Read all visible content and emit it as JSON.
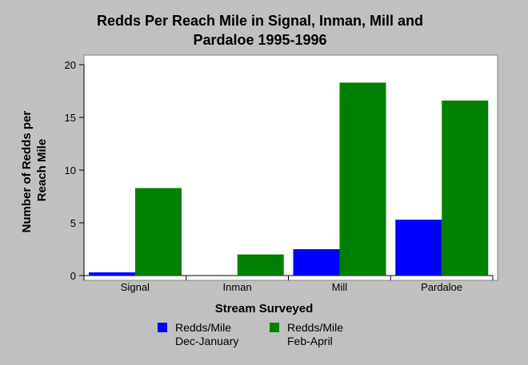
{
  "chart_data": {
    "type": "bar",
    "title": "Redds Per Reach Mile in Signal, Inman, Mill and Pardaloe 1995-1996",
    "title_lines": [
      "Redds Per Reach Mile in Signal, Inman, Mill and",
      "Pardaloe 1995-1996"
    ],
    "xlabel": "Stream Surveyed",
    "ylabel": "Number of Redds per Reach Mile",
    "ylabel_lines": [
      "Number of Redds per",
      "Reach Mile"
    ],
    "categories": [
      "Signal",
      "Inman",
      "Mill",
      "Pardaloe"
    ],
    "ylim": [
      0,
      20
    ],
    "yticks": [
      0,
      5,
      10,
      15,
      20
    ],
    "grid": false,
    "legend_position": "bottom",
    "series": [
      {
        "name": "Redds/Mile Dec-January",
        "legend_label": "Redds/Mile\nDec-January",
        "color": "#0000ff",
        "values": [
          0.3,
          0,
          2.5,
          5.3
        ]
      },
      {
        "name": "Redds/Mile Feb-April",
        "legend_label": "Redds/Mile\nFeb-April",
        "color": "#008000",
        "values": [
          8.3,
          2.0,
          18.3,
          16.6
        ]
      }
    ]
  }
}
